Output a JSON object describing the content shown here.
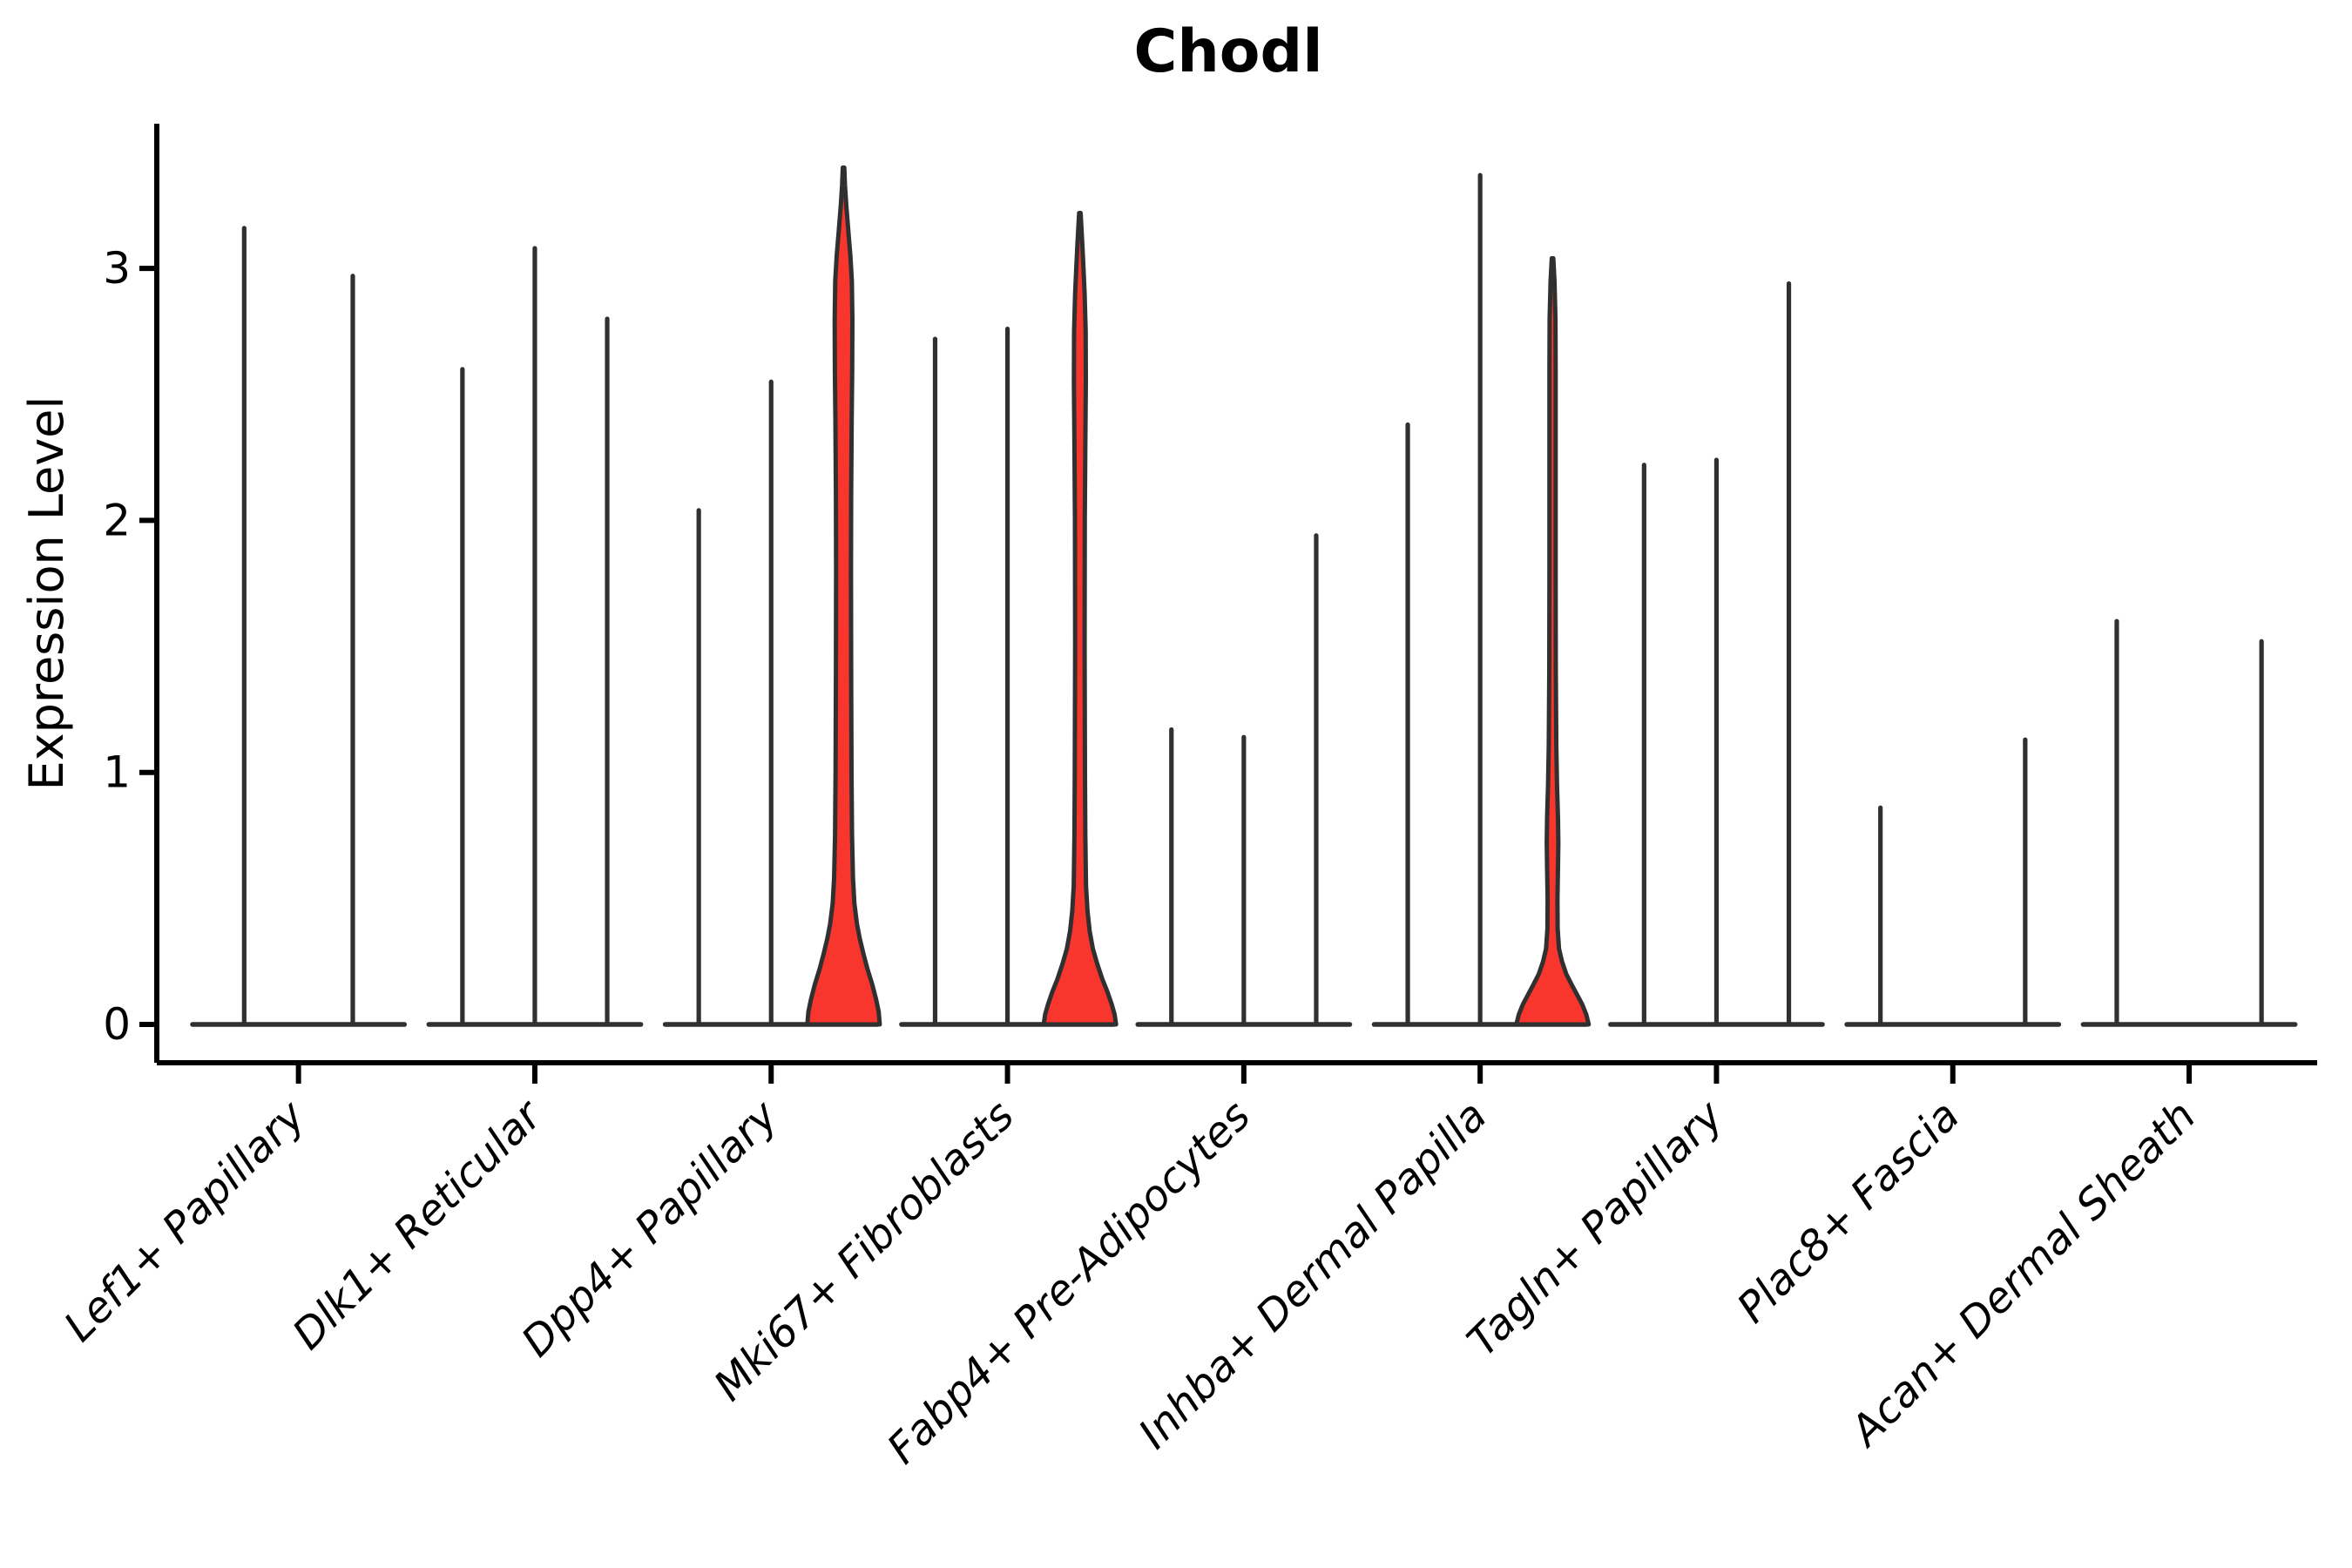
{
  "chart_data": {
    "type": "violin",
    "title": "Chodl",
    "ylabel": "Expression Level",
    "xlabel": "",
    "yticks": [
      0,
      1,
      2,
      3
    ],
    "ylim": [
      0,
      3.58
    ],
    "grid": false,
    "legend": "none",
    "colors": {
      "highlight_fill": "#F8362D",
      "violin_stroke": "#303030",
      "axis_color": "#000000",
      "background": "#FFFFFF"
    },
    "groups": [
      {
        "label": "Lef1+ Papillary",
        "violins": [
          {
            "max": 3.16
          },
          {
            "max": 2.97
          }
        ]
      },
      {
        "label": "Dlk1+ Reticular",
        "violins": [
          {
            "max": 2.6
          },
          {
            "max": 3.08
          },
          {
            "max": 2.8
          }
        ]
      },
      {
        "label": "Dpp4+ Papillary",
        "violins": [
          {
            "max": 2.04
          },
          {
            "max": 2.55
          },
          {
            "max": 3.4,
            "highlighted": true,
            "profile": [
              [
                0,
                1.0
              ],
              [
                0.05,
                0.97
              ],
              [
                0.1,
                0.9
              ],
              [
                0.16,
                0.79
              ],
              [
                0.22,
                0.66
              ],
              [
                0.28,
                0.55
              ],
              [
                0.34,
                0.45
              ],
              [
                0.4,
                0.37
              ],
              [
                0.48,
                0.3
              ],
              [
                0.58,
                0.26
              ],
              [
                0.75,
                0.235
              ],
              [
                1.0,
                0.22
              ],
              [
                1.4,
                0.21
              ],
              [
                1.8,
                0.205
              ],
              [
                2.1,
                0.21
              ],
              [
                2.4,
                0.225
              ],
              [
                2.6,
                0.24
              ],
              [
                2.8,
                0.245
              ],
              [
                2.95,
                0.23
              ],
              [
                3.05,
                0.19
              ],
              [
                3.15,
                0.13
              ],
              [
                3.25,
                0.075
              ],
              [
                3.33,
                0.04
              ],
              [
                3.4,
                0.02
              ]
            ]
          }
        ]
      },
      {
        "label": "Mki67+ Fibroblasts",
        "violins": [
          {
            "max": 2.72
          },
          {
            "max": 2.76
          },
          {
            "max": 3.22,
            "highlighted": true,
            "profile": [
              [
                0,
                1.0
              ],
              [
                0.04,
                0.96
              ],
              [
                0.08,
                0.88
              ],
              [
                0.13,
                0.76
              ],
              [
                0.18,
                0.62
              ],
              [
                0.24,
                0.48
              ],
              [
                0.3,
                0.36
              ],
              [
                0.37,
                0.27
              ],
              [
                0.45,
                0.21
              ],
              [
                0.55,
                0.17
              ],
              [
                0.75,
                0.15
              ],
              [
                1.0,
                0.14
              ],
              [
                1.5,
                0.13
              ],
              [
                2.0,
                0.135
              ],
              [
                2.3,
                0.15
              ],
              [
                2.55,
                0.165
              ],
              [
                2.75,
                0.16
              ],
              [
                2.9,
                0.13
              ],
              [
                3.0,
                0.1
              ],
              [
                3.1,
                0.065
              ],
              [
                3.22,
                0.02
              ]
            ]
          }
        ]
      },
      {
        "label": "Fabp4+ Pre-Adipocytes",
        "violins": [
          {
            "max": 1.17
          },
          {
            "max": 1.14
          },
          {
            "max": 1.94
          }
        ]
      },
      {
        "label": "Inhba+ Dermal Papilla",
        "violins": [
          {
            "max": 2.38
          },
          {
            "max": 3.37
          },
          {
            "max": 3.04,
            "highlighted": true,
            "profile": [
              [
                0,
                1.0
              ],
              [
                0.04,
                0.93
              ],
              [
                0.08,
                0.82
              ],
              [
                0.12,
                0.67
              ],
              [
                0.16,
                0.52
              ],
              [
                0.2,
                0.38
              ],
              [
                0.25,
                0.26
              ],
              [
                0.3,
                0.18
              ],
              [
                0.38,
                0.14
              ],
              [
                0.5,
                0.135
              ],
              [
                0.62,
                0.15
              ],
              [
                0.72,
                0.16
              ],
              [
                0.82,
                0.15
              ],
              [
                0.95,
                0.125
              ],
              [
                1.1,
                0.105
              ],
              [
                1.4,
                0.09
              ],
              [
                1.8,
                0.085
              ],
              [
                2.2,
                0.085
              ],
              [
                2.6,
                0.085
              ],
              [
                2.8,
                0.08
              ],
              [
                2.95,
                0.055
              ],
              [
                3.04,
                0.02
              ]
            ]
          }
        ]
      },
      {
        "label": "Tagln+ Papillary",
        "violins": [
          {
            "max": 2.22
          },
          {
            "max": 2.24
          },
          {
            "max": 2.94
          }
        ]
      },
      {
        "label": "Plac8+ Fascia",
        "violins": [
          {
            "max": 0.86
          },
          {
            "max": 0.0,
            "flat": true
          },
          {
            "max": 1.13
          }
        ]
      },
      {
        "label": "Acan+ Dermal Sheath",
        "violins": [
          {
            "max": 1.6
          },
          {
            "max": 0.0,
            "flat": true
          },
          {
            "max": 1.52
          }
        ]
      }
    ]
  }
}
